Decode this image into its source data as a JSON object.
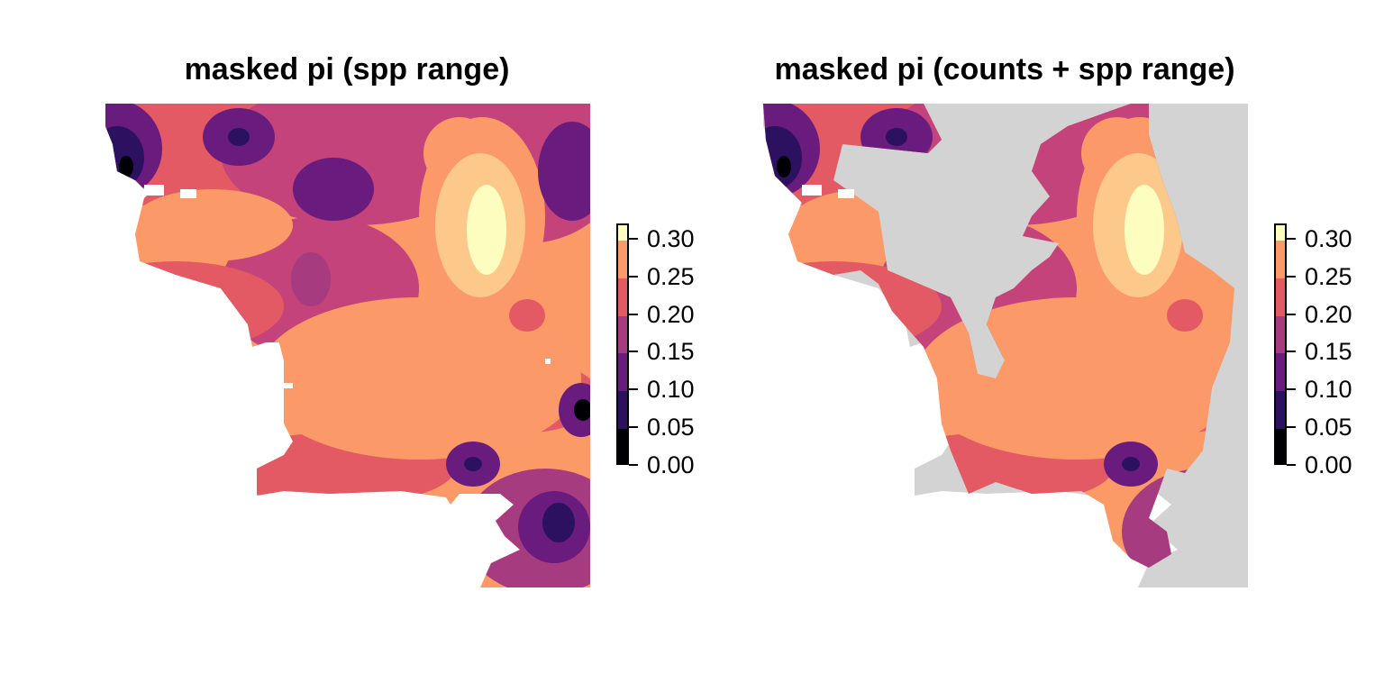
{
  "panels": [
    {
      "title": "masked pi (spp range)",
      "mask_color": "#ffffff"
    },
    {
      "title": "masked pi (counts + spp range)",
      "mask_color": "#d3d3d3"
    }
  ],
  "legend": {
    "labels": [
      "0.30",
      "0.25",
      "0.20",
      "0.15",
      "0.10",
      "0.05",
      "0.00"
    ],
    "range": [
      0.0,
      0.32
    ],
    "break_values": [
      0.0,
      0.05,
      0.1,
      0.15,
      0.2,
      0.25,
      0.3
    ],
    "bins": [
      {
        "from": 0.0,
        "to": 0.05,
        "color": "#000004"
      },
      {
        "from": 0.05,
        "to": 0.1,
        "color": "#2c1160"
      },
      {
        "from": 0.1,
        "to": 0.15,
        "color": "#6a1c7e"
      },
      {
        "from": 0.15,
        "to": 0.2,
        "color": "#a63b7f"
      },
      {
        "from": 0.2,
        "to": 0.25,
        "color": "#e35a64"
      },
      {
        "from": 0.25,
        "to": 0.3,
        "color": "#fb9968"
      },
      {
        "from": 0.3,
        "to": 0.32,
        "color": "#fcfdbf"
      }
    ]
  },
  "colors": {
    "background": "#ffffff",
    "land_base": "#fb9a67",
    "level_1": "#000004",
    "level_2": "#2c1160",
    "level_3": "#6a1c7e",
    "level_4": "#a63b7f",
    "level_5": "#e35a64",
    "level_6": "#fb9968",
    "level_7": "#fdc98a",
    "level_8": "#fcfdbf"
  }
}
